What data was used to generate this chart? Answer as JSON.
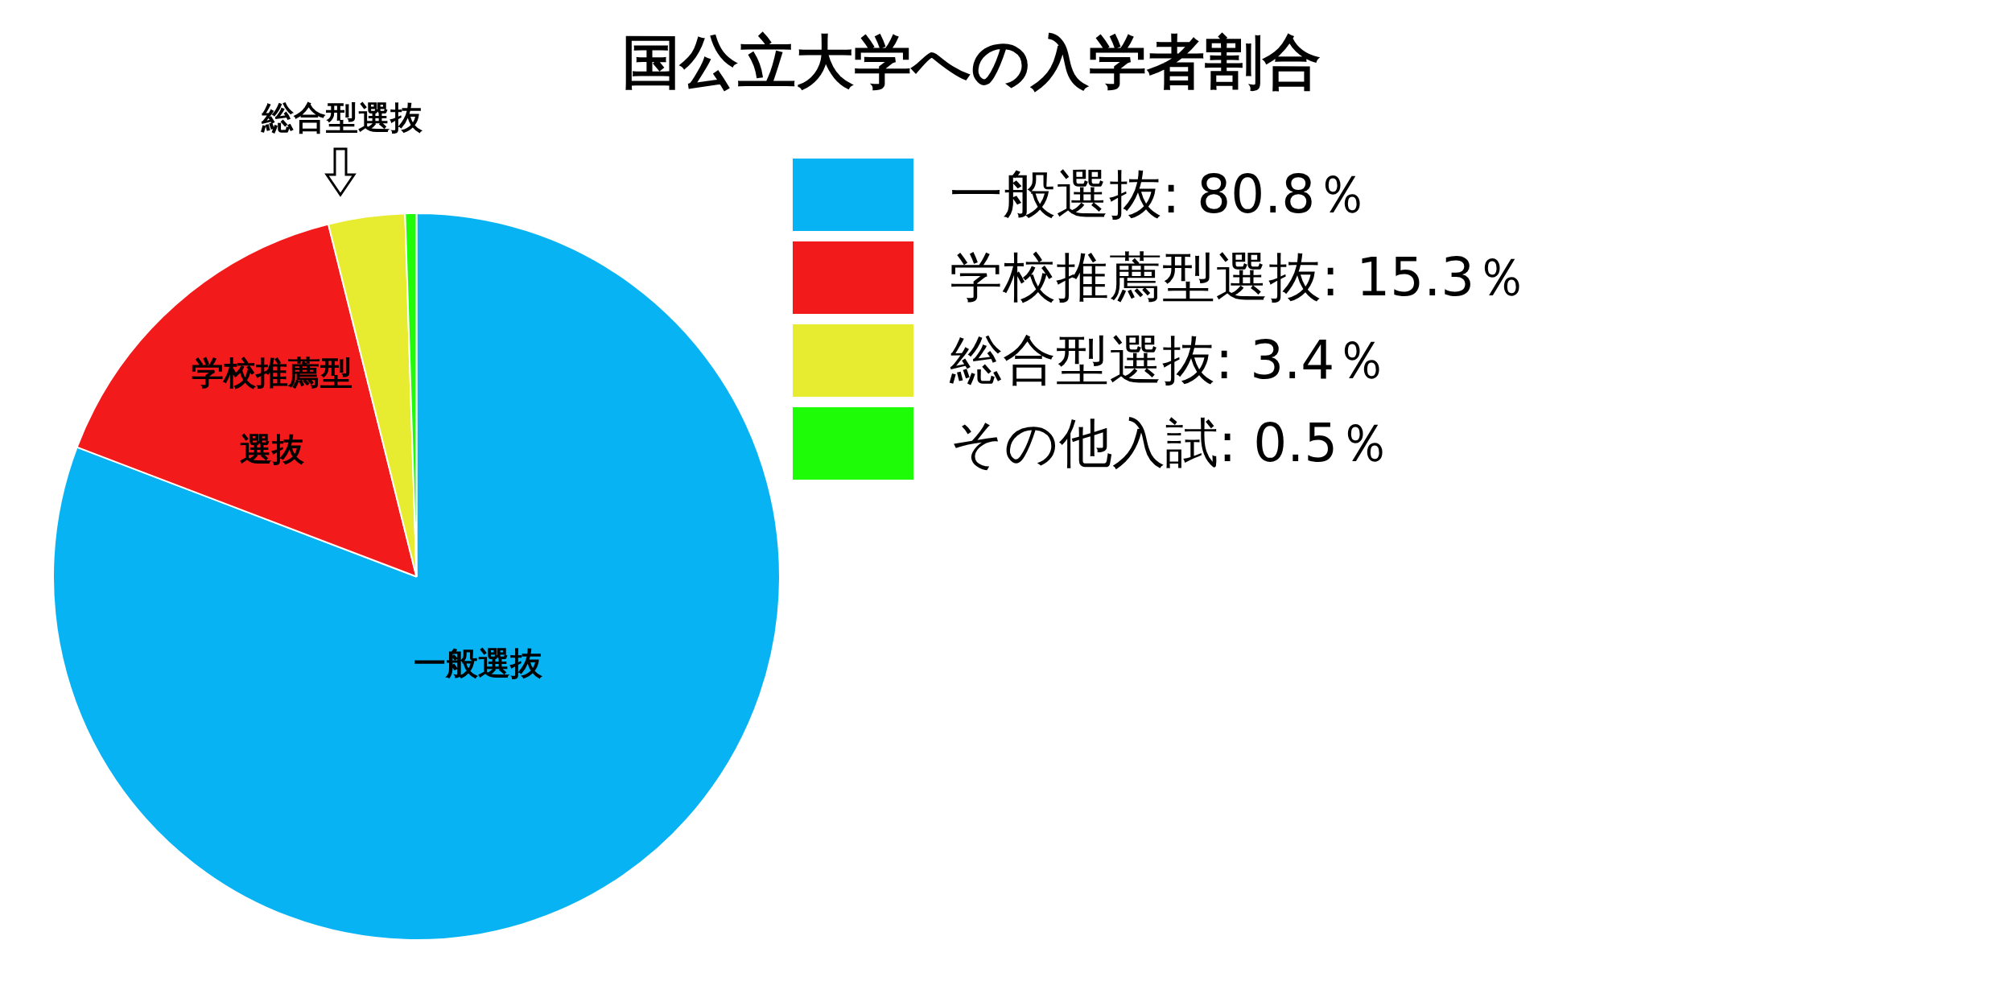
{
  "chart_data": {
    "type": "pie",
    "title": "国公立大学への入学者割合",
    "categories": [
      "一般選抜: 80.8％",
      "学校推薦型選抜: 15.3％",
      "総合型選抜: 3.4％",
      "その他入試: 0.5％"
    ],
    "values": [
      80.8,
      15.3,
      3.4,
      0.5
    ],
    "colors": [
      "#08b3f3",
      "#f21a1a",
      "#e8ec30",
      "#1efc08"
    ],
    "annotations": [
      "一般選抜",
      "学校推薦型選抜",
      "総合型選抜"
    ],
    "legend": "right"
  }
}
